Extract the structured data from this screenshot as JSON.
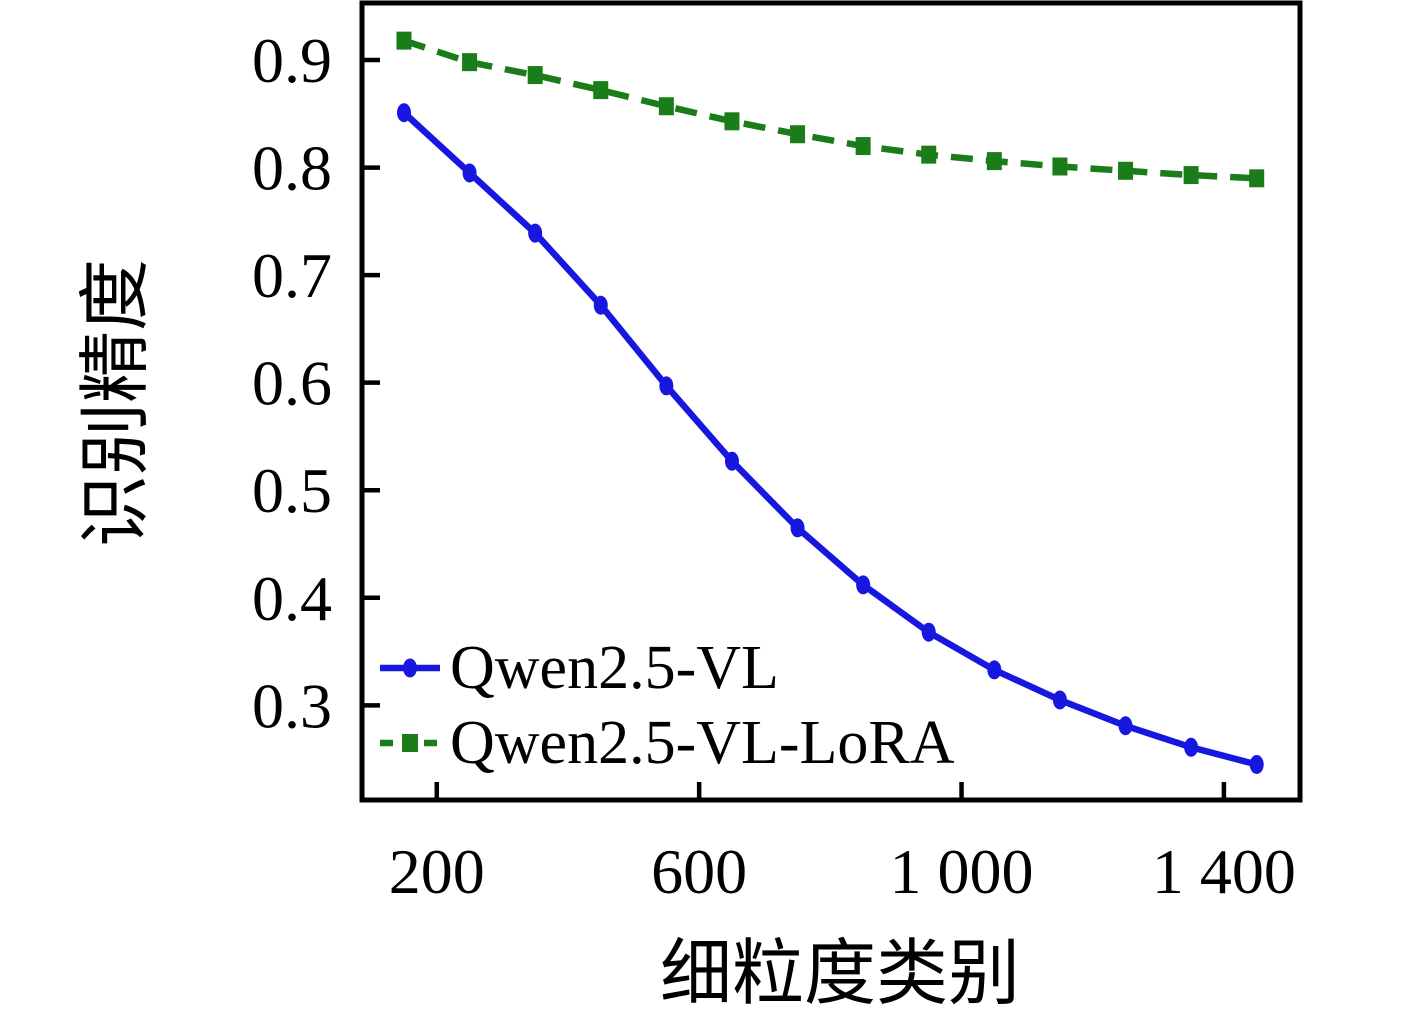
{
  "chart_data": {
    "type": "line",
    "title": "",
    "xlabel": "细粒度类别",
    "ylabel": "识别精度",
    "x": [
      150,
      250,
      350,
      450,
      550,
      650,
      750,
      850,
      950,
      1050,
      1150,
      1250,
      1350,
      1450
    ],
    "series": [
      {
        "name": "Qwen2.5-VL",
        "color": "#1717e0",
        "line_style": "solid",
        "marker": "circle",
        "values": [
          0.851,
          0.795,
          0.739,
          0.672,
          0.597,
          0.527,
          0.465,
          0.412,
          0.368,
          0.333,
          0.305,
          0.281,
          0.261,
          0.245
        ]
      },
      {
        "name": "Qwen2.5-VL-LoRA",
        "color": "#1a7d1a",
        "line_style": "dashed",
        "marker": "square",
        "values": [
          0.918,
          0.898,
          0.886,
          0.872,
          0.857,
          0.843,
          0.831,
          0.82,
          0.812,
          0.806,
          0.801,
          0.797,
          0.793,
          0.79
        ]
      }
    ],
    "x_ticks": [
      200,
      600,
      1000,
      1400
    ],
    "x_tick_labels": [
      "200",
      "600",
      "1 000",
      "1 400"
    ],
    "y_ticks": [
      0.3,
      0.4,
      0.5,
      0.6,
      0.7,
      0.8,
      0.9
    ],
    "y_tick_labels": [
      "0.3",
      "0.4",
      "0.5",
      "0.6",
      "0.7",
      "0.8",
      "0.9"
    ],
    "xlim": [
      86,
      1516
    ],
    "ylim": [
      0.212,
      0.953
    ],
    "grid": false,
    "legend_position": "lower-left",
    "axis_color": "#000000"
  },
  "legend": {
    "items": [
      {
        "label": "Qwen2.5-VL"
      },
      {
        "label": "Qwen2.5-VL-LoRA"
      }
    ]
  }
}
